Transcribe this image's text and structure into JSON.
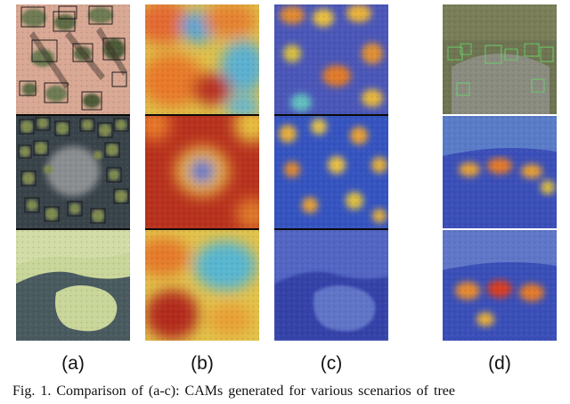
{
  "figure": {
    "column_labels": [
      "(a)",
      "(b)",
      "(c)",
      "(d)"
    ],
    "caption": "Fig. 1.  Comparison of (a-c): CAMs generated for various scenarios of tree"
  }
}
